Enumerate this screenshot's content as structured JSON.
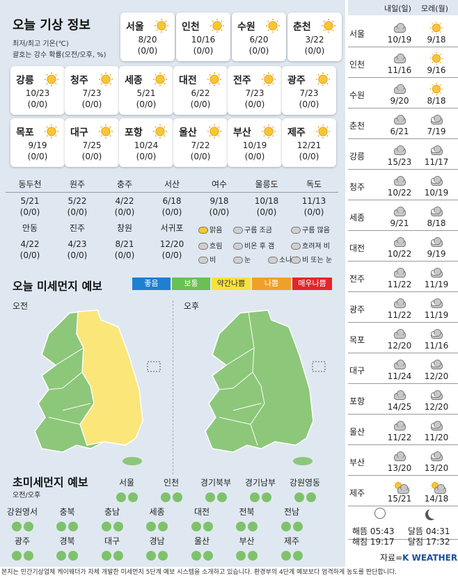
{
  "today": {
    "title": "오늘 기상 정보",
    "note1": "최저/최고 기온(℃)",
    "note2": "괄호는 강수 확률(오전/오후, %)",
    "cards": [
      {
        "name": "서울",
        "temp": "8/20",
        "rain": "(0/0)"
      },
      {
        "name": "인천",
        "temp": "10/16",
        "rain": "(0/0)"
      },
      {
        "name": "수원",
        "temp": "6/20",
        "rain": "(0/0)"
      },
      {
        "name": "춘천",
        "temp": "3/22",
        "rain": "(0/0)"
      },
      {
        "name": "강릉",
        "temp": "10/23",
        "rain": "(0/0)"
      },
      {
        "name": "청주",
        "temp": "7/23",
        "rain": "(0/0)"
      },
      {
        "name": "세종",
        "temp": "5/21",
        "rain": "(0/0)"
      },
      {
        "name": "대전",
        "temp": "6/22",
        "rain": "(0/0)"
      },
      {
        "name": "전주",
        "temp": "7/23",
        "rain": "(0/0)"
      },
      {
        "name": "광주",
        "temp": "7/23",
        "rain": "(0/0)"
      },
      {
        "name": "목포",
        "temp": "9/19",
        "rain": "(0/0)"
      },
      {
        "name": "대구",
        "temp": "7/25",
        "rain": "(0/0)"
      },
      {
        "name": "포항",
        "temp": "10/24",
        "rain": "(0/0)"
      },
      {
        "name": "울산",
        "temp": "7/22",
        "rain": "(0/0)"
      },
      {
        "name": "부산",
        "temp": "10/19",
        "rain": "(0/0)"
      },
      {
        "name": "제주",
        "temp": "12/21",
        "rain": "(0/0)"
      }
    ],
    "cities": [
      {
        "name": "동두천",
        "temp": "5/21",
        "rain": "(0/0)"
      },
      {
        "name": "원주",
        "temp": "5/22",
        "rain": "(0/0)"
      },
      {
        "name": "충주",
        "temp": "4/22",
        "rain": "(0/0)"
      },
      {
        "name": "서산",
        "temp": "6/18",
        "rain": "(0/0)"
      },
      {
        "name": "여수",
        "temp": "9/18",
        "rain": "(0/0)"
      },
      {
        "name": "울릉도",
        "temp": "10/18",
        "rain": "(0/0)"
      },
      {
        "name": "독도",
        "temp": "11/13",
        "rain": "(0/0)"
      },
      {
        "name": "안동",
        "temp": "4/22",
        "rain": "(0/0)"
      },
      {
        "name": "진주",
        "temp": "4/23",
        "rain": "(0/0)"
      },
      {
        "name": "창원",
        "temp": "8/21",
        "rain": "(0/0)"
      },
      {
        "name": "서귀포",
        "temp": "12/20",
        "rain": "(0/0)"
      }
    ],
    "legend": [
      "맑음",
      "구름 조금",
      "구름 많음",
      "흐림",
      "비온 후 갬",
      "흐려져 비",
      "비",
      "눈",
      "소나기",
      "비 또는 눈"
    ]
  },
  "dust": {
    "title": "오늘 미세먼지 예보",
    "grades": [
      {
        "label": "좋음",
        "color": "#1f7fd1"
      },
      {
        "label": "보통",
        "color": "#6cbf55"
      },
      {
        "label": "약간나쁨",
        "color": "#f6e23b"
      },
      {
        "label": "나쁨",
        "color": "#f0a02a"
      },
      {
        "label": "매우나쁨",
        "color": "#e3262c"
      }
    ],
    "am": "오전",
    "pm": "오후",
    "colors": {
      "good": "#8dc77a",
      "bad": "#fbe67a"
    }
  },
  "fine": {
    "title": "초미세먼지 예보",
    "sub": "오전/오후",
    "cities": [
      "서울",
      "인천",
      "경기북부",
      "경기남부",
      "강원영동",
      "강원영서",
      "충북",
      "충남",
      "세종",
      "대전",
      "전북",
      "전남",
      "광주",
      "경북",
      "대구",
      "경남",
      "울산",
      "부산",
      "제주"
    ]
  },
  "forecast": {
    "day1": "내일(일)",
    "day2": "모레(월)",
    "rows": [
      {
        "name": "서울",
        "d1": "10/19",
        "d2": "9/18",
        "i1": "cloud",
        "i2": "sun"
      },
      {
        "name": "인천",
        "d1": "11/16",
        "d2": "9/16",
        "i1": "cloud",
        "i2": "sun"
      },
      {
        "name": "수원",
        "d1": "9/20",
        "d2": "8/18",
        "i1": "cloud",
        "i2": "sun"
      },
      {
        "name": "춘천",
        "d1": "6/21",
        "d2": "7/19",
        "i1": "cloud",
        "i2": "white-cloud"
      },
      {
        "name": "강릉",
        "d1": "15/23",
        "d2": "11/17",
        "i1": "cloud",
        "i2": "white-cloud"
      },
      {
        "name": "청주",
        "d1": "10/22",
        "d2": "10/19",
        "i1": "cloud",
        "i2": "white-cloud"
      },
      {
        "name": "세종",
        "d1": "9/21",
        "d2": "8/18",
        "i1": "cloud",
        "i2": "white-cloud"
      },
      {
        "name": "대전",
        "d1": "10/22",
        "d2": "9/19",
        "i1": "cloud",
        "i2": "white-cloud"
      },
      {
        "name": "전주",
        "d1": "11/22",
        "d2": "11/19",
        "i1": "cloud",
        "i2": "white-cloud"
      },
      {
        "name": "광주",
        "d1": "11/22",
        "d2": "11/19",
        "i1": "cloud",
        "i2": "white-cloud"
      },
      {
        "name": "목포",
        "d1": "12/20",
        "d2": "11/16",
        "i1": "cloud",
        "i2": "white-cloud"
      },
      {
        "name": "대구",
        "d1": "11/24",
        "d2": "12/20",
        "i1": "cloud",
        "i2": "white-cloud"
      },
      {
        "name": "포항",
        "d1": "14/25",
        "d2": "12/20",
        "i1": "cloud",
        "i2": "white-cloud"
      },
      {
        "name": "울산",
        "d1": "11/22",
        "d2": "11/20",
        "i1": "cloud",
        "i2": "white-cloud"
      },
      {
        "name": "부산",
        "d1": "13/20",
        "d2": "13/20",
        "i1": "cloud",
        "i2": "white-cloud"
      },
      {
        "name": "제주",
        "d1": "15/21",
        "d2": "14/18",
        "i1": "sun-cloud-rain",
        "i2": "sun-cloud-rain"
      }
    ],
    "sunrise": "해뜸 05:43",
    "sunset": "해짐 19:17",
    "moonrise": "달뜸 04:31",
    "moonset": "달짐 17:32",
    "source_label": "자료=",
    "source_brand": "K WEATHER"
  },
  "footer": "본지는 민간기상업체 케이웨더가 자체 개발한 미세먼지 5단계 예보 시스템을 소개하고 있습니다. 환경부의 4단계 예보보다 엄격하게 농도를 판단합니다."
}
